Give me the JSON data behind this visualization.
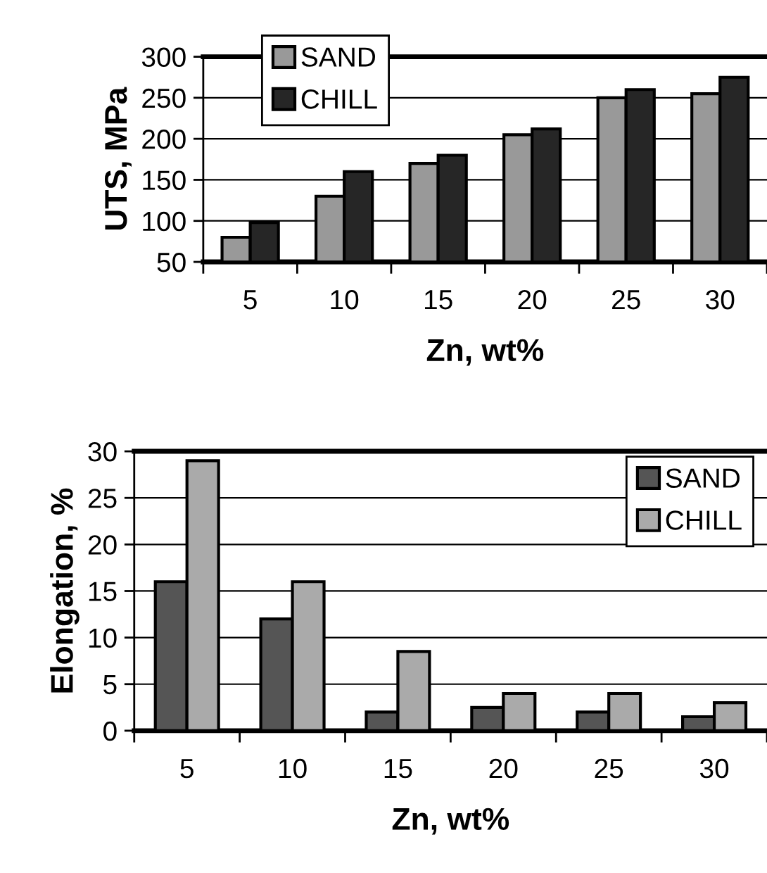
{
  "chart_data": [
    {
      "type": "bar",
      "categories": [
        "5",
        "10",
        "15",
        "20",
        "25",
        "30"
      ],
      "xlabel": "Zn, wt%",
      "ylabel": "UTS, MPa",
      "ylim": [
        50,
        300
      ],
      "yticks": [
        50,
        100,
        150,
        200,
        250,
        300
      ],
      "grid": "y",
      "legend": "top left",
      "series": [
        {
          "name": "SAND",
          "color": "#999999",
          "values": [
            80,
            130,
            170,
            205,
            250,
            255
          ]
        },
        {
          "name": "CHILL",
          "color": "#262626",
          "values": [
            98,
            160,
            180,
            212,
            260,
            275
          ]
        }
      ]
    },
    {
      "type": "bar",
      "categories": [
        "5",
        "10",
        "15",
        "20",
        "25",
        "30"
      ],
      "xlabel": "Zn, wt%",
      "ylabel": "Elongation, %",
      "ylim": [
        0,
        30
      ],
      "yticks": [
        0,
        5,
        10,
        15,
        20,
        25,
        30
      ],
      "grid": "y",
      "legend": "top right",
      "series": [
        {
          "name": "SAND",
          "color": "#555555",
          "values": [
            16,
            12,
            2,
            2.5,
            2,
            1.5
          ]
        },
        {
          "name": "CHILL",
          "color": "#aaaaaa",
          "values": [
            29,
            16,
            8.5,
            4,
            4,
            3
          ]
        }
      ]
    }
  ]
}
